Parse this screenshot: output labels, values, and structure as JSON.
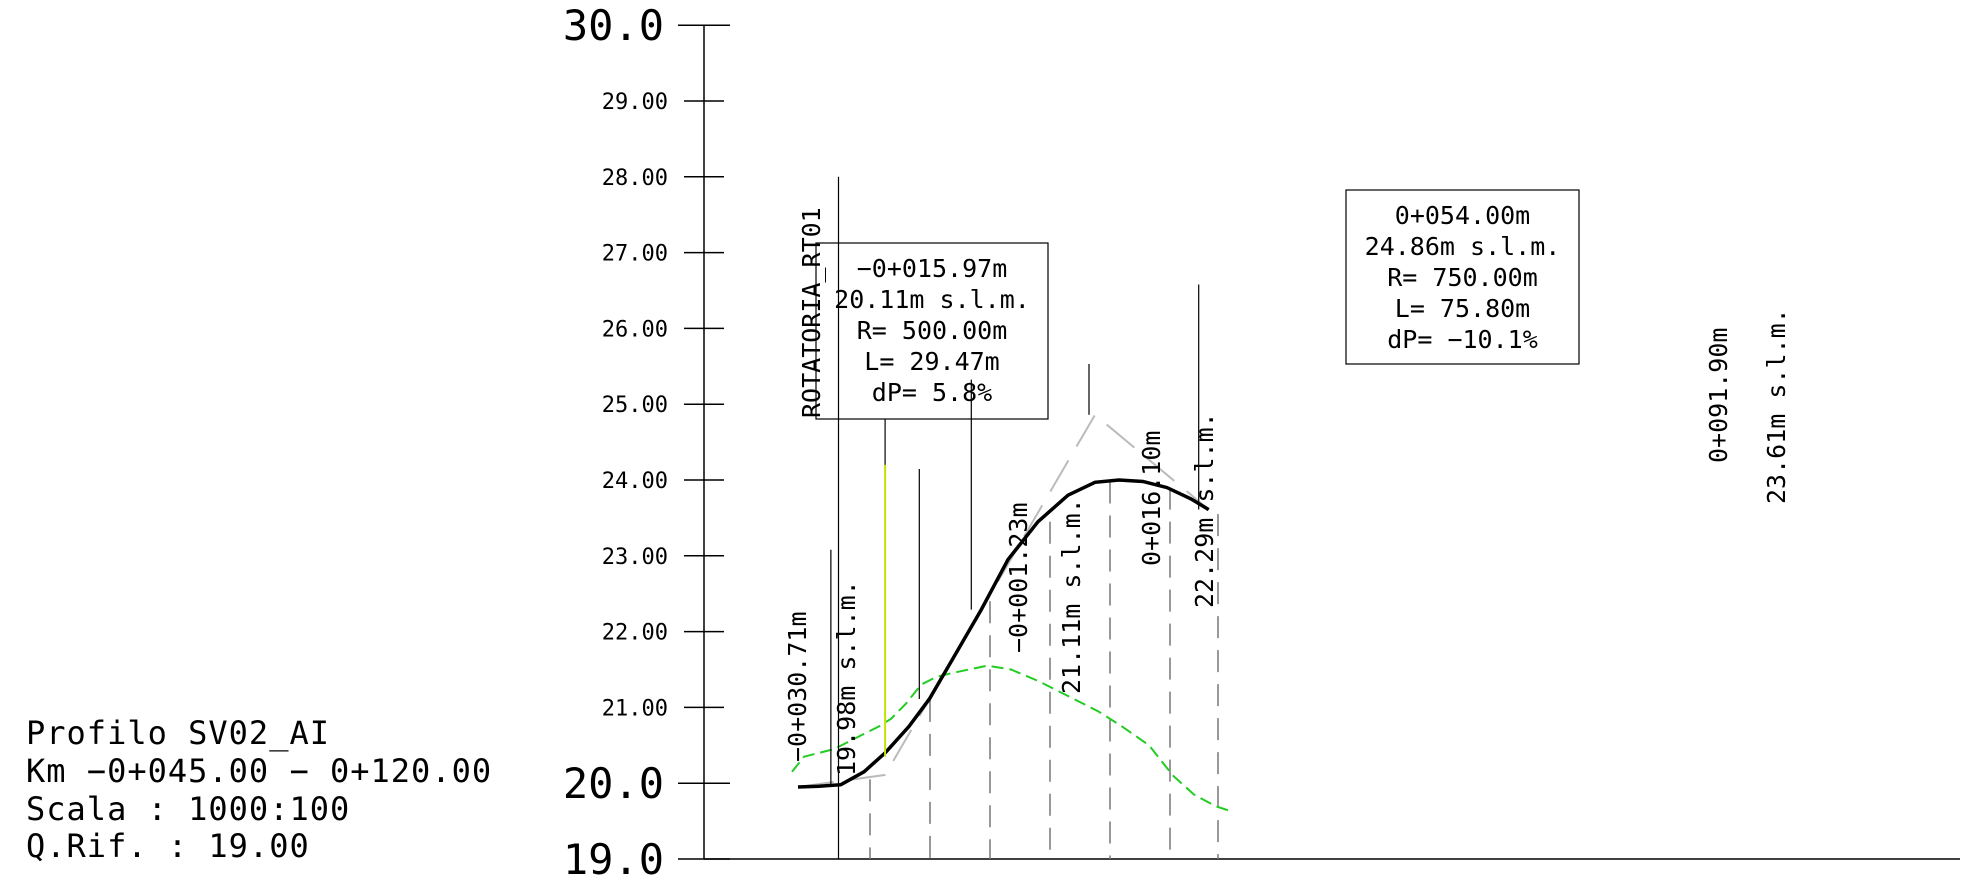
{
  "profile_info": {
    "name": "Profilo SV02_AI",
    "km_range": "Km −0+045.00 − 0+120.00",
    "scale": "Scala : 1000:100",
    "ref_quota": "Q.Rif. : 19.00"
  },
  "elevation_axis": {
    "min_label": "19.0",
    "max_label": "30.0",
    "tick_labels": [
      "20.0",
      "21.00",
      "22.00",
      "23.00",
      "24.00",
      "25.00",
      "26.00",
      "27.00",
      "28.00",
      "29.00"
    ]
  },
  "vertical_curves": [
    {
      "station": "−0+015.97m",
      "elevation": "20.11m s.l.m.",
      "radius": "R= 500.00m",
      "length": "L= 29.47m",
      "grade_change": "dP= 5.8%"
    },
    {
      "station": "0+054.00m",
      "elevation": "24.86m s.l.m.",
      "radius": "R= 750.00m",
      "length": "L= 75.80m",
      "grade_change": "dP= −10.1%"
    }
  ],
  "point_labels": [
    {
      "station": "−0+030.71m",
      "elevation": "19.98m s.l.m."
    },
    {
      "station": "−0+001.23m",
      "elevation": "21.11m s.l.m."
    },
    {
      "station": "0+016.10m",
      "elevation": "22.29m s.l.m."
    },
    {
      "station": "0+091.90m",
      "elevation": "23.61m s.l.m."
    }
  ],
  "junction_label": "ROTATORIA_RT01",
  "chart_data": {
    "type": "line",
    "title": "",
    "xlabel": "",
    "ylabel": "",
    "ylim": [
      19.0,
      30.0
    ],
    "xlim": [
      -45.0,
      120.0
    ],
    "grid": false,
    "series": [
      {
        "color": "#000000",
        "x": [
          -45.0,
          -38.0,
          -30.71,
          -23.0,
          -15.97,
          -8.0,
          -1.23,
          6.0,
          16.1,
          25.0,
          35.0,
          45.0,
          54.0,
          62.0,
          70.0,
          78.0,
          86.0,
          91.9
        ],
        "y": [
          19.95,
          19.96,
          19.98,
          20.15,
          20.4,
          20.75,
          21.11,
          21.6,
          22.29,
          22.95,
          23.45,
          23.8,
          23.97,
          24.0,
          23.98,
          23.9,
          23.75,
          23.61
        ]
      },
      {
        "color": "#22cc22",
        "x": [
          -47.0,
          -43.0,
          -38.0,
          -33.0,
          -28.0,
          -23.0,
          -18.0,
          -14.0,
          -9.0,
          -4.0,
          1.0,
          6.0,
          12.0,
          18.0,
          26.0,
          35.0,
          45.0,
          55.0,
          63.0,
          72.0,
          80.0,
          87.0,
          94.0,
          100.0
        ],
        "y": [
          20.15,
          20.35,
          20.4,
          20.45,
          20.55,
          20.65,
          20.75,
          20.85,
          21.05,
          21.3,
          21.4,
          21.45,
          21.5,
          21.55,
          21.5,
          21.35,
          21.15,
          20.95,
          20.75,
          20.5,
          20.1,
          19.85,
          19.7,
          19.62
        ]
      },
      {
        "color": "#bbbbbb",
        "x": [
          -45.0,
          -15.97,
          54.0,
          91.9
        ],
        "y": [
          19.95,
          20.11,
          24.86,
          23.61
        ]
      }
    ],
    "vertical_marks": [
      {
        "x": -30.71,
        "y": 19.98
      },
      {
        "x": -1.23,
        "y": 21.11
      },
      {
        "x": 16.1,
        "y": 22.29
      },
      {
        "x": 91.9,
        "y": 23.61
      }
    ],
    "dashed_stations": [
      -21.0,
      -1.0,
      19.0,
      39.0,
      59.0,
      79.0,
      95.0
    ],
    "junction_station": -31.5
  }
}
